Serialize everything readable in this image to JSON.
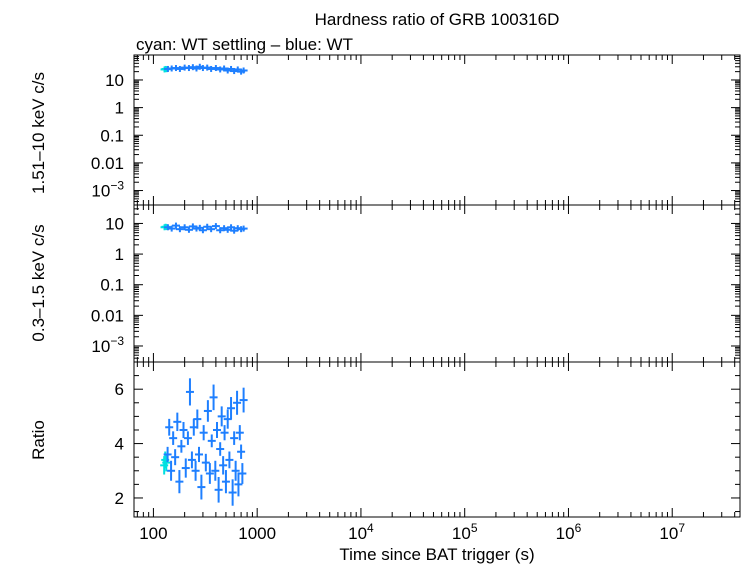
{
  "chart_data": {
    "type": "scatter",
    "title": "Hardness ratio of GRB 100316D",
    "subtitle": "cyan: WT settling – blue: WT",
    "xlabel": "Time since BAT trigger (s)",
    "x_scale": "log",
    "xlim": [
      65,
      45000000
    ],
    "x_ticks": [
      {
        "value": 100,
        "label": "100"
      },
      {
        "value": 1000,
        "label": "1000"
      },
      {
        "value": 10000,
        "label": "10",
        "exp": "4"
      },
      {
        "value": 100000,
        "label": "10",
        "exp": "5"
      },
      {
        "value": 1000000,
        "label": "10",
        "exp": "6"
      },
      {
        "value": 10000000,
        "label": "10",
        "exp": "7"
      }
    ],
    "colors": {
      "wt_settling": "#00e0e0",
      "wt": "#1e7fff",
      "axes": "#000000"
    },
    "panels": [
      {
        "id": "hard",
        "ylabel": "1.51–10 keV c/s",
        "y_scale": "log",
        "ylim": [
          0.0003,
          80
        ],
        "y_ticks": [
          {
            "value": 10,
            "label": "10"
          },
          {
            "value": 1,
            "label": "1"
          },
          {
            "value": 0.1,
            "label": "0.1"
          },
          {
            "value": 0.01,
            "label": "0.01"
          },
          {
            "value": 0.001,
            "label": "10",
            "exp": "−3"
          }
        ],
        "series": [
          {
            "name": "WT settling",
            "color": "#00e0e0",
            "x": [
              128,
              131,
              134
            ],
            "y": [
              24,
              25,
              24.5
            ]
          },
          {
            "name": "WT",
            "color": "#1e7fff",
            "x": [
              138,
              150,
              165,
              180,
              200,
              220,
              240,
              260,
              280,
              300,
              330,
              360,
              400,
              440,
              480,
              520,
              560,
              600,
              650,
              700,
              740
            ],
            "y": [
              25,
              26,
              27,
              25,
              28,
              27,
              29,
              26,
              30,
              27,
              28,
              25,
              27,
              24,
              26,
              22,
              25,
              21,
              24,
              20,
              22
            ]
          }
        ]
      },
      {
        "id": "soft",
        "ylabel": "0.3–1.5 keV c/s",
        "y_scale": "log",
        "ylim": [
          0.0003,
          40
        ],
        "y_ticks": [
          {
            "value": 10,
            "label": "10"
          },
          {
            "value": 1,
            "label": "1"
          },
          {
            "value": 0.1,
            "label": "0.1"
          },
          {
            "value": 0.01,
            "label": "0.01"
          },
          {
            "value": 0.001,
            "label": "10",
            "exp": "−3"
          }
        ],
        "series": [
          {
            "name": "WT settling",
            "color": "#00e0e0",
            "x": [
              128,
              131,
              134
            ],
            "y": [
              7.5,
              7.8,
              7.6
            ]
          },
          {
            "name": "WT",
            "color": "#1e7fff",
            "x": [
              138,
              150,
              165,
              180,
              200,
              220,
              240,
              260,
              280,
              300,
              330,
              360,
              400,
              440,
              480,
              520,
              560,
              600,
              650,
              700,
              740
            ],
            "y": [
              7.5,
              6.8,
              8.5,
              6.5,
              7.5,
              6.2,
              8.0,
              6.8,
              7.2,
              6.0,
              7.8,
              6.5,
              8.2,
              6.0,
              7.0,
              6.2,
              7.5,
              5.8,
              7.0,
              6.5,
              6.8
            ]
          }
        ]
      },
      {
        "id": "ratio",
        "ylabel": "Ratio",
        "y_scale": "linear",
        "ylim": [
          1.3,
          7.0
        ],
        "y_ticks": [
          {
            "value": 2,
            "label": "2"
          },
          {
            "value": 4,
            "label": "4"
          },
          {
            "value": 6,
            "label": "6"
          }
        ],
        "series": [
          {
            "name": "WT settling",
            "color": "#00e0e0",
            "x": [
              127,
              130,
              133
            ],
            "y": [
              3.2,
              3.4,
              3.3
            ]
          },
          {
            "name": "WT",
            "color": "#1e7fff",
            "x": [
              137,
              142,
              148,
              155,
              162,
              170,
              178,
              186,
              195,
              205,
              215,
              225,
              235,
              245,
              255,
              265,
              275,
              290,
              305,
              320,
              335,
              350,
              365,
              380,
              395,
              410,
              425,
              440,
              455,
              470,
              485,
              500,
              520,
              540,
              560,
              580,
              600,
              620,
              640,
              660,
              680,
              700,
              720,
              740
            ],
            "y": [
              3.6,
              4.6,
              3.0,
              4.2,
              3.5,
              4.8,
              2.6,
              3.9,
              4.5,
              3.1,
              4.2,
              5.9,
              3.4,
              4.6,
              3.0,
              4.9,
              3.6,
              2.4,
              4.4,
              3.3,
              5.2,
              2.9,
              4.1,
              5.7,
              3.0,
              4.5,
              2.3,
              3.8,
              5.0,
              3.2,
              4.4,
              2.6,
              4.9,
              3.4,
              5.3,
              2.2,
              4.2,
              3.0,
              5.5,
              2.5,
              4.4,
              3.7,
              2.9,
              5.6
            ]
          }
        ]
      }
    ]
  }
}
